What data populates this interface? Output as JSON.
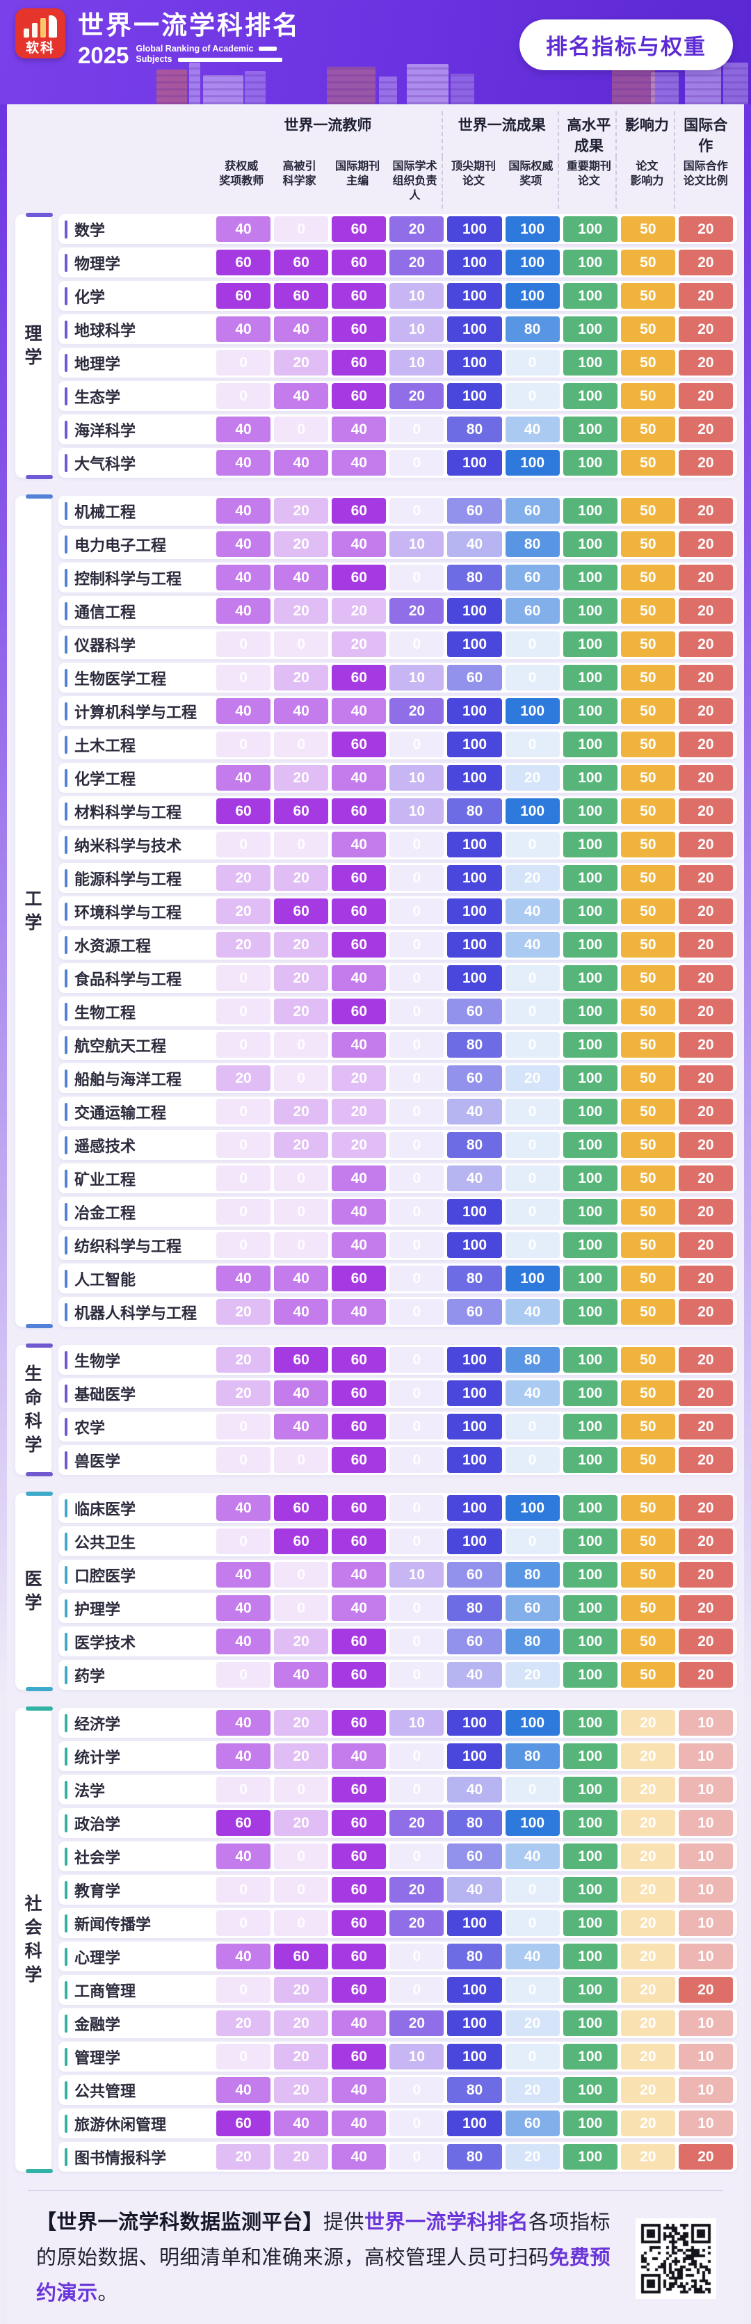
{
  "header": {
    "logo_text": "软科",
    "title": "世界一流学科排名",
    "year": "2025",
    "subtitle_line1": "Global Ranking of Academic",
    "subtitle_line2": "Subjects",
    "badge": "排名指标与权重",
    "banner_colors": [
      "#7a41ea",
      "#5b28d2"
    ],
    "badge_text_color": "#5c2bd4"
  },
  "chart_data": {
    "type": "heatmap",
    "title": "排名指标与权重",
    "value_note": "cell value = indicator weight, cell tint = value / column max",
    "groups": [
      {
        "label": "世界一流教师",
        "span": 4
      },
      {
        "label": "世界一流成果",
        "span": 2
      },
      {
        "label": "高水平成果",
        "span": 1
      },
      {
        "label": "影响力",
        "span": 1
      },
      {
        "label": "国际合作",
        "span": 1
      }
    ],
    "columns": [
      {
        "label": "获权威\n奖项教师",
        "color": "#a63ae2",
        "max": 60
      },
      {
        "label": "高被引\n科学家",
        "color": "#a63ae2",
        "max": 60
      },
      {
        "label": "国际期刊\n主编",
        "color": "#a63ae2",
        "max": 60
      },
      {
        "label": "国际学术\n组织负责人",
        "color": "#8f6ee8",
        "max": 20
      },
      {
        "label": "顶尖期刊\n论文",
        "color": "#4a47dd",
        "max": 100
      },
      {
        "label": "国际权威\n奖项",
        "color": "#2e7adc",
        "max": 100
      },
      {
        "label": "重要期刊\n论文",
        "color": "#57b579",
        "max": 100
      },
      {
        "label": "论文\n影响力",
        "color": "#f0b43e",
        "max": 50
      },
      {
        "label": "国际合作\n论文比例",
        "color": "#dd6e68",
        "max": 20
      }
    ],
    "sections": [
      {
        "name": "理学",
        "color": "#6e59d9",
        "rows": [
          {
            "subject": "数学",
            "values": [
              40,
              0,
              60,
              20,
              100,
              100,
              100,
              50,
              20
            ]
          },
          {
            "subject": "物理学",
            "values": [
              60,
              60,
              60,
              20,
              100,
              100,
              100,
              50,
              20
            ]
          },
          {
            "subject": "化学",
            "values": [
              60,
              60,
              60,
              10,
              100,
              100,
              100,
              50,
              20
            ]
          },
          {
            "subject": "地球科学",
            "values": [
              40,
              40,
              60,
              10,
              100,
              80,
              100,
              50,
              20
            ]
          },
          {
            "subject": "地理学",
            "values": [
              0,
              20,
              60,
              10,
              100,
              0,
              100,
              50,
              20
            ]
          },
          {
            "subject": "生态学",
            "values": [
              0,
              40,
              60,
              20,
              100,
              0,
              100,
              50,
              20
            ]
          },
          {
            "subject": "海洋科学",
            "values": [
              40,
              0,
              40,
              0,
              80,
              40,
              100,
              50,
              20
            ]
          },
          {
            "subject": "大气科学",
            "values": [
              40,
              40,
              40,
              0,
              100,
              100,
              100,
              50,
              20
            ]
          }
        ]
      },
      {
        "name": "工学",
        "color": "#5281d8",
        "rows": [
          {
            "subject": "机械工程",
            "values": [
              40,
              20,
              60,
              0,
              60,
              60,
              100,
              50,
              20
            ]
          },
          {
            "subject": "电力电子工程",
            "values": [
              40,
              20,
              40,
              10,
              40,
              80,
              100,
              50,
              20
            ]
          },
          {
            "subject": "控制科学与工程",
            "values": [
              40,
              40,
              60,
              0,
              80,
              60,
              100,
              50,
              20
            ]
          },
          {
            "subject": "通信工程",
            "values": [
              40,
              20,
              20,
              20,
              100,
              60,
              100,
              50,
              20
            ]
          },
          {
            "subject": "仪器科学",
            "values": [
              0,
              0,
              20,
              0,
              100,
              0,
              100,
              50,
              20
            ]
          },
          {
            "subject": "生物医学工程",
            "values": [
              0,
              20,
              60,
              10,
              60,
              0,
              100,
              50,
              20
            ]
          },
          {
            "subject": "计算机科学与工程",
            "values": [
              40,
              40,
              40,
              20,
              100,
              100,
              100,
              50,
              20
            ]
          },
          {
            "subject": "土木工程",
            "values": [
              0,
              0,
              60,
              0,
              100,
              0,
              100,
              50,
              20
            ]
          },
          {
            "subject": "化学工程",
            "values": [
              40,
              20,
              40,
              10,
              100,
              20,
              100,
              50,
              20
            ]
          },
          {
            "subject": "材料科学与工程",
            "values": [
              60,
              60,
              60,
              10,
              80,
              100,
              100,
              50,
              20
            ]
          },
          {
            "subject": "纳米科学与技术",
            "values": [
              0,
              0,
              40,
              0,
              100,
              0,
              100,
              50,
              20
            ]
          },
          {
            "subject": "能源科学与工程",
            "values": [
              20,
              20,
              60,
              0,
              100,
              20,
              100,
              50,
              20
            ]
          },
          {
            "subject": "环境科学与工程",
            "values": [
              20,
              60,
              60,
              0,
              100,
              40,
              100,
              50,
              20
            ]
          },
          {
            "subject": "水资源工程",
            "values": [
              20,
              20,
              60,
              0,
              100,
              40,
              100,
              50,
              20
            ]
          },
          {
            "subject": "食品科学与工程",
            "values": [
              0,
              20,
              40,
              0,
              100,
              0,
              100,
              50,
              20
            ]
          },
          {
            "subject": "生物工程",
            "values": [
              0,
              20,
              60,
              0,
              60,
              0,
              100,
              50,
              20
            ]
          },
          {
            "subject": "航空航天工程",
            "values": [
              0,
              0,
              40,
              0,
              80,
              0,
              100,
              50,
              20
            ]
          },
          {
            "subject": "船舶与海洋工程",
            "values": [
              20,
              0,
              20,
              0,
              60,
              20,
              100,
              50,
              20
            ]
          },
          {
            "subject": "交通运输工程",
            "values": [
              0,
              20,
              20,
              0,
              40,
              0,
              100,
              50,
              20
            ]
          },
          {
            "subject": "遥感技术",
            "values": [
              0,
              20,
              20,
              0,
              80,
              0,
              100,
              50,
              20
            ]
          },
          {
            "subject": "矿业工程",
            "values": [
              0,
              0,
              40,
              0,
              40,
              0,
              100,
              50,
              20
            ]
          },
          {
            "subject": "冶金工程",
            "values": [
              0,
              0,
              40,
              0,
              100,
              0,
              100,
              50,
              20
            ]
          },
          {
            "subject": "纺织科学与工程",
            "values": [
              0,
              0,
              40,
              0,
              100,
              0,
              100,
              50,
              20
            ]
          },
          {
            "subject": "人工智能",
            "values": [
              40,
              40,
              60,
              0,
              80,
              100,
              100,
              50,
              20
            ]
          },
          {
            "subject": "机器人科学与工程",
            "values": [
              20,
              40,
              40,
              0,
              60,
              40,
              100,
              50,
              20
            ]
          }
        ]
      },
      {
        "name": "生命科学",
        "color": "#7158cf",
        "rows": [
          {
            "subject": "生物学",
            "values": [
              20,
              60,
              60,
              0,
              100,
              80,
              100,
              50,
              20
            ]
          },
          {
            "subject": "基础医学",
            "values": [
              20,
              40,
              60,
              0,
              100,
              40,
              100,
              50,
              20
            ]
          },
          {
            "subject": "农学",
            "values": [
              0,
              40,
              60,
              0,
              100,
              0,
              100,
              50,
              20
            ]
          },
          {
            "subject": "兽医学",
            "values": [
              0,
              0,
              60,
              0,
              100,
              0,
              100,
              50,
              20
            ]
          }
        ]
      },
      {
        "name": "医学",
        "color": "#3fa9c9",
        "rows": [
          {
            "subject": "临床医学",
            "values": [
              40,
              60,
              60,
              0,
              100,
              100,
              100,
              50,
              20
            ]
          },
          {
            "subject": "公共卫生",
            "values": [
              0,
              60,
              60,
              0,
              100,
              0,
              100,
              50,
              20
            ]
          },
          {
            "subject": "口腔医学",
            "values": [
              40,
              0,
              40,
              10,
              60,
              80,
              100,
              50,
              20
            ]
          },
          {
            "subject": "护理学",
            "values": [
              40,
              0,
              40,
              0,
              80,
              60,
              100,
              50,
              20
            ]
          },
          {
            "subject": "医学技术",
            "values": [
              40,
              20,
              60,
              0,
              60,
              80,
              100,
              50,
              20
            ]
          },
          {
            "subject": "药学",
            "values": [
              0,
              40,
              60,
              0,
              40,
              20,
              100,
              50,
              20
            ]
          }
        ]
      },
      {
        "name": "社会科学",
        "color": "#32b2a4",
        "rows": [
          {
            "subject": "经济学",
            "values": [
              40,
              20,
              60,
              10,
              100,
              100,
              100,
              20,
              10
            ]
          },
          {
            "subject": "统计学",
            "values": [
              40,
              20,
              40,
              0,
              100,
              80,
              100,
              20,
              10
            ]
          },
          {
            "subject": "法学",
            "values": [
              0,
              0,
              60,
              0,
              40,
              0,
              100,
              20,
              10
            ]
          },
          {
            "subject": "政治学",
            "values": [
              60,
              20,
              60,
              20,
              80,
              100,
              100,
              20,
              10
            ]
          },
          {
            "subject": "社会学",
            "values": [
              40,
              0,
              60,
              0,
              60,
              40,
              100,
              20,
              10
            ]
          },
          {
            "subject": "教育学",
            "values": [
              0,
              0,
              60,
              20,
              40,
              0,
              100,
              20,
              10
            ]
          },
          {
            "subject": "新闻传播学",
            "values": [
              0,
              0,
              60,
              20,
              100,
              0,
              100,
              20,
              10
            ]
          },
          {
            "subject": "心理学",
            "values": [
              40,
              60,
              60,
              0,
              80,
              40,
              100,
              20,
              10
            ]
          },
          {
            "subject": "工商管理",
            "values": [
              0,
              20,
              60,
              0,
              100,
              0,
              100,
              20,
              20
            ]
          },
          {
            "subject": "金融学",
            "values": [
              20,
              20,
              40,
              20,
              100,
              20,
              100,
              20,
              10
            ]
          },
          {
            "subject": "管理学",
            "values": [
              0,
              20,
              60,
              10,
              100,
              0,
              100,
              20,
              10
            ]
          },
          {
            "subject": "公共管理",
            "values": [
              40,
              20,
              40,
              0,
              80,
              20,
              100,
              20,
              10
            ]
          },
          {
            "subject": "旅游休闲管理",
            "values": [
              60,
              40,
              40,
              0,
              100,
              60,
              100,
              20,
              10
            ]
          },
          {
            "subject": "图书情报科学",
            "values": [
              20,
              20,
              40,
              0,
              80,
              20,
              100,
              20,
              20
            ]
          }
        ]
      }
    ]
  },
  "footer": {
    "segments": [
      {
        "text": "【世界一流学科数据监测平台】",
        "style": "b"
      },
      {
        "text": "提供",
        "style": "n"
      },
      {
        "text": "世界一流学科排名",
        "style": "p"
      },
      {
        "text": "各项指标的原始数据、明细清单和准确来源，高校管理人员可扫码",
        "style": "n"
      },
      {
        "text": "免费预约演示",
        "style": "p"
      },
      {
        "text": "。",
        "style": "n"
      }
    ],
    "highlight_color": "#6a35d8"
  }
}
